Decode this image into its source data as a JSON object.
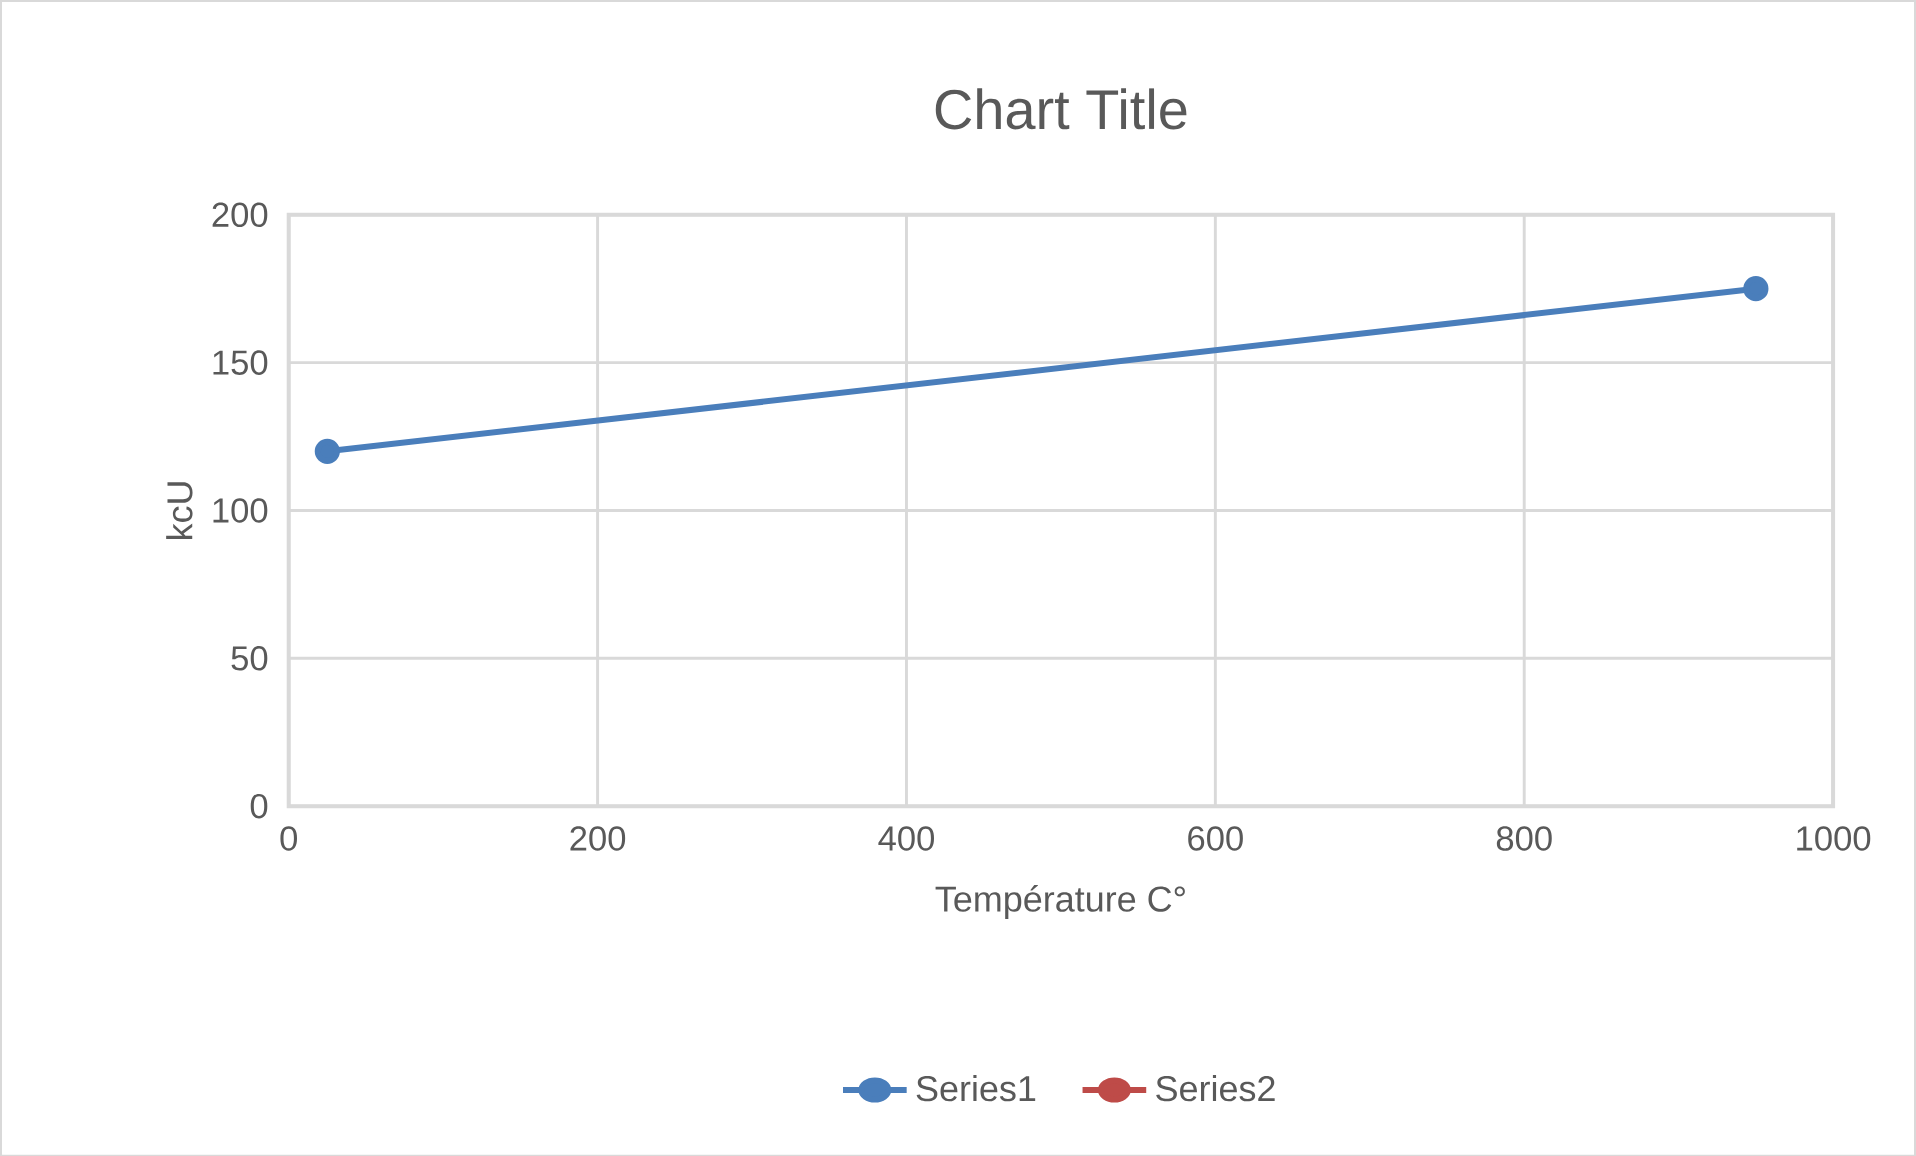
{
  "chart_data": {
    "type": "line",
    "title": "Chart Title",
    "xlabel": "Température C°",
    "ylabel": "kcU",
    "x": [
      25,
      950
    ],
    "series": [
      {
        "name": "Series1",
        "color": "#4a7ebb",
        "values": [
          120,
          175
        ]
      },
      {
        "name": "Series2",
        "color": "#be4b48",
        "values": [
          null,
          null
        ]
      }
    ],
    "xlim": [
      0,
      1000
    ],
    "xticks": [
      0,
      200,
      400,
      600,
      800,
      1000
    ],
    "ylim": [
      0,
      200
    ],
    "yticks": [
      0,
      50,
      100,
      150,
      200
    ],
    "grid": true,
    "legend": "bottom",
    "marker": "circle",
    "line_style": "solid"
  }
}
